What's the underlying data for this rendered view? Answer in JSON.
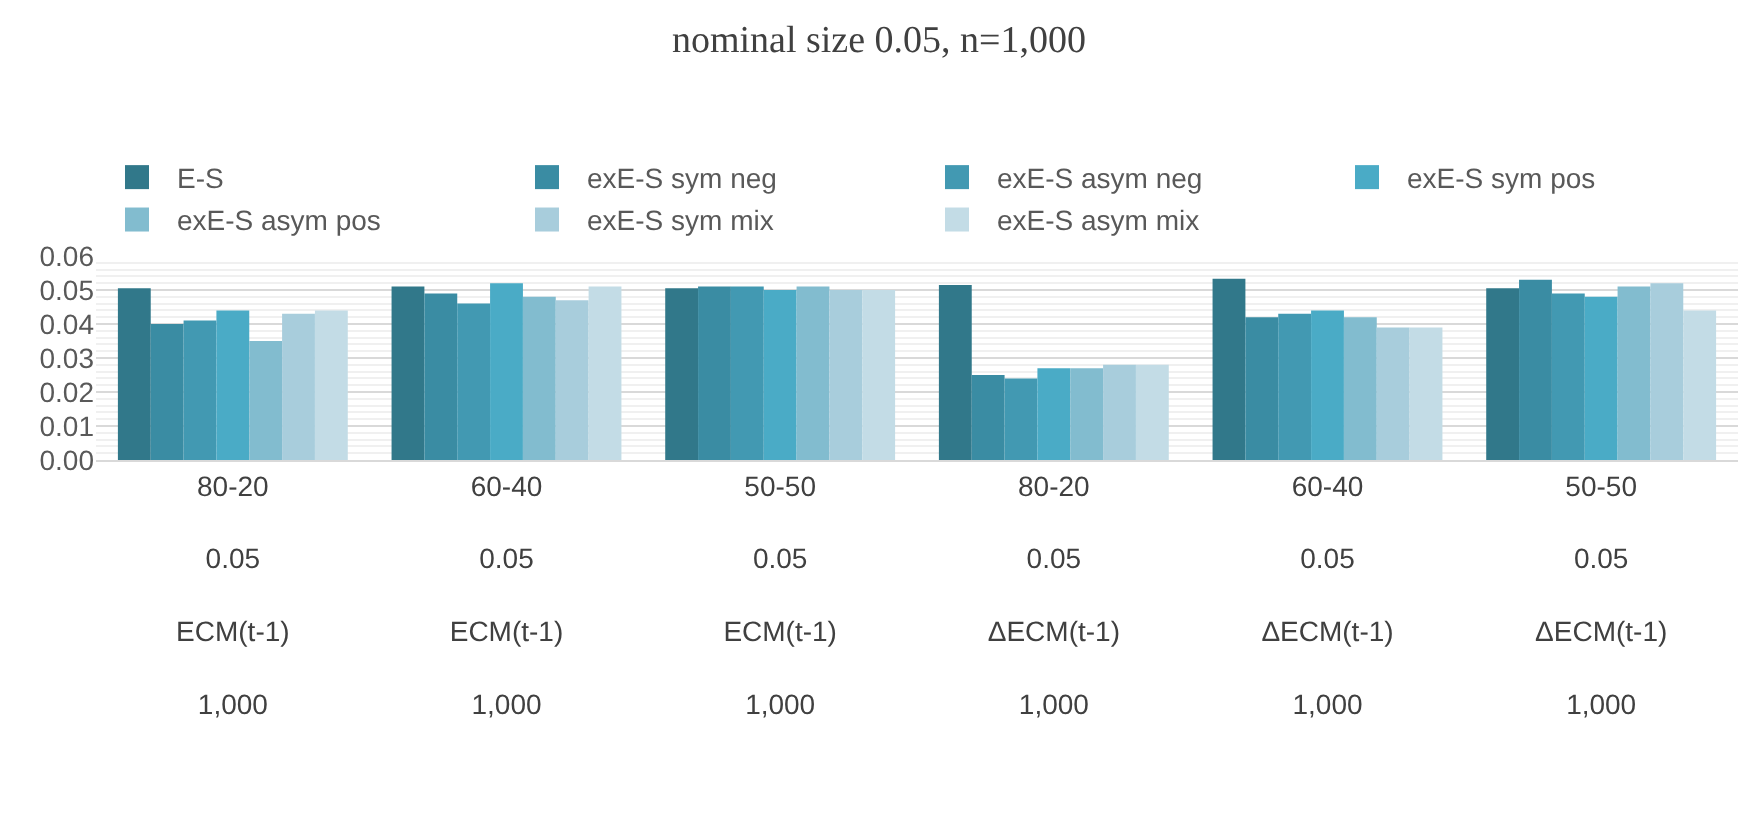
{
  "chart_data": {
    "type": "bar",
    "title": "nominal size 0.05, n=1,000",
    "categories": [
      "80-20\n0.05\nECM(t-1)\n1,000",
      "60-40\n0.05\nECM(t-1)\n1,000",
      "50-50\n0.05\nECM(t-1)\n1,000",
      "80-20\n0.05\nΔECM(t-1)\n1,000",
      "60-40\n0.05\nΔECM(t-1)\n1,000",
      "50-50\n0.05\nΔECM(t-1)\n1,000"
    ],
    "series": [
      {
        "name": "E-S",
        "color": "#31788a",
        "values": [
          0.0505,
          0.051,
          0.0505,
          0.0515,
          0.0533,
          0.0505
        ]
      },
      {
        "name": "exE-S sym neg",
        "color": "#3a8ca3",
        "values": [
          0.04,
          0.049,
          0.051,
          0.025,
          0.042,
          0.053
        ]
      },
      {
        "name": "exE-S asym neg",
        "color": "#4299b2",
        "values": [
          0.041,
          0.046,
          0.051,
          0.024,
          0.043,
          0.049
        ]
      },
      {
        "name": "exE-S sym pos",
        "color": "#4aabc6",
        "values": [
          0.044,
          0.052,
          0.05,
          0.027,
          0.044,
          0.048
        ]
      },
      {
        "name": "exE-S asym pos",
        "color": "#82bccf",
        "values": [
          0.035,
          0.048,
          0.051,
          0.027,
          0.042,
          0.051
        ]
      },
      {
        "name": "exE-S sym mix",
        "color": "#a8cddc",
        "values": [
          0.043,
          0.047,
          0.05,
          0.028,
          0.039,
          0.052
        ]
      },
      {
        "name": "exE-S asym mix",
        "color": "#c3dce6",
        "values": [
          0.044,
          0.051,
          0.05,
          0.028,
          0.039,
          0.044
        ]
      }
    ],
    "ylim": [
      0,
      0.06
    ],
    "yticks": [
      {
        "value": 0,
        "label": "0.00"
      },
      {
        "value": 0.01,
        "label": "0.01"
      },
      {
        "value": 0.02,
        "label": "0.02"
      },
      {
        "value": 0.03,
        "label": "0.03"
      },
      {
        "value": 0.04,
        "label": "0.04"
      },
      {
        "value": 0.05,
        "label": "0.05"
      },
      {
        "value": 0.06,
        "label": "0.06"
      }
    ],
    "grid": "y",
    "legend": "top"
  }
}
